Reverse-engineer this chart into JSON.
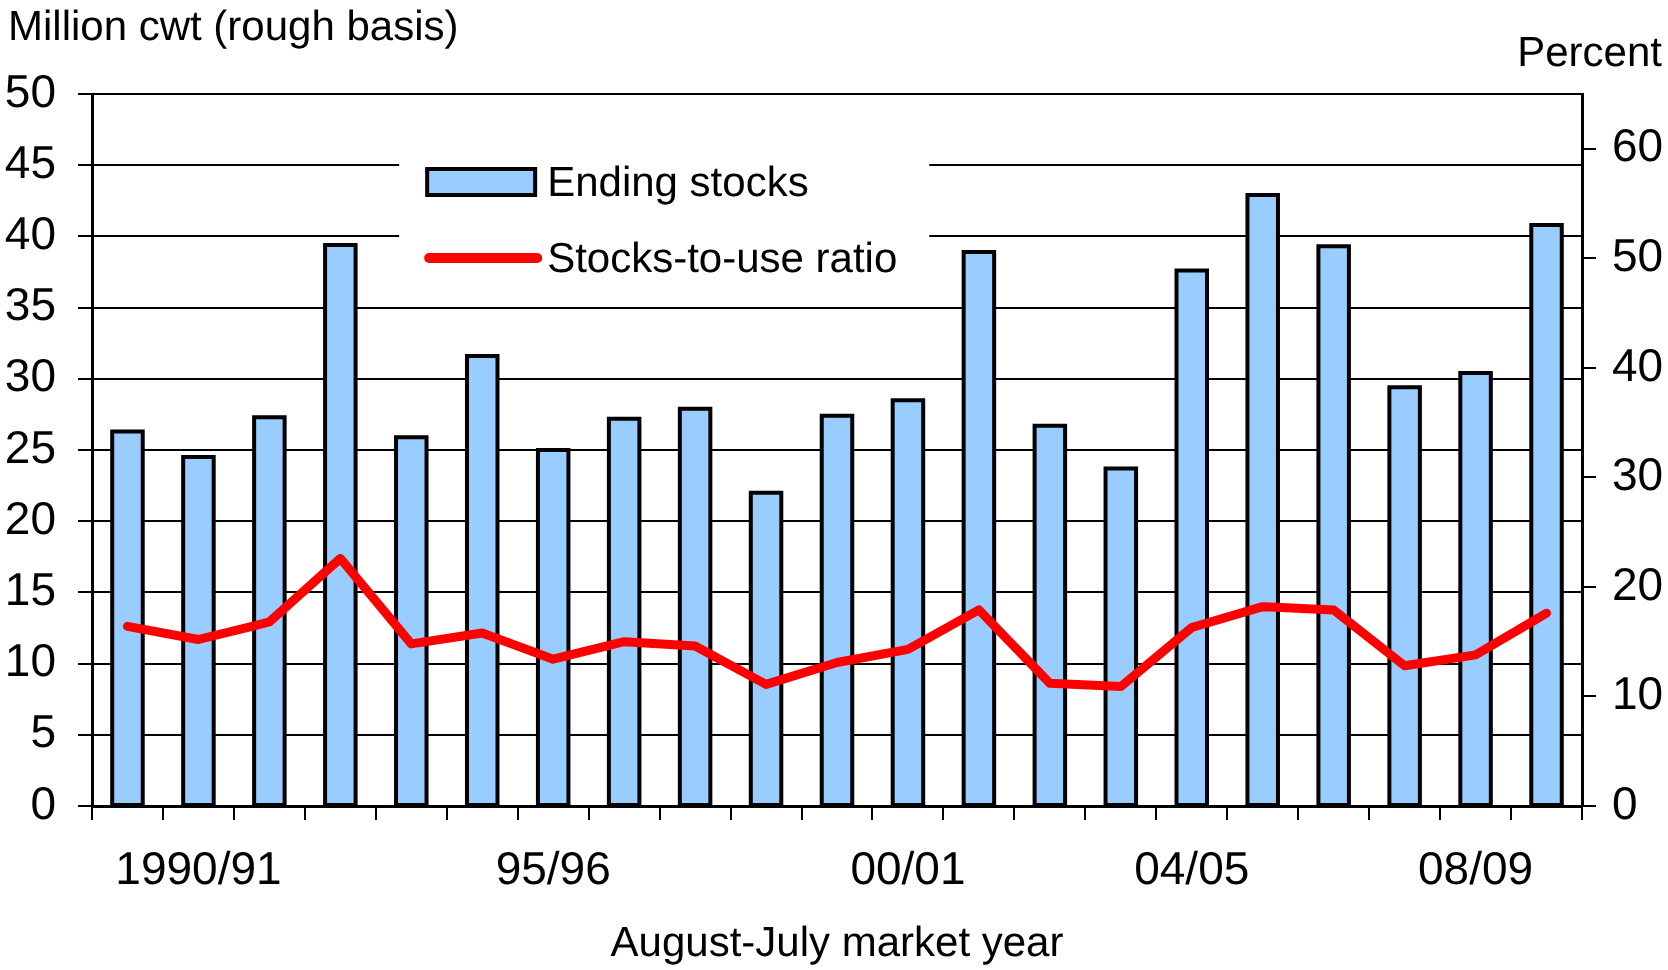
{
  "chart_data": {
    "type": "bar",
    "xlabel": "August-July market year",
    "ylabel": "Million cwt (rough basis)",
    "y2label": "Percent",
    "categories": [
      null,
      "1990/91",
      null,
      null,
      null,
      null,
      "95/96",
      null,
      null,
      null,
      null,
      "00/01",
      null,
      null,
      null,
      "04/05",
      null,
      null,
      null,
      "08/09",
      null
    ],
    "series": [
      {
        "name": "Ending stocks",
        "color": "#99ccff",
        "values": [
          26.3,
          24.5,
          27.3,
          39.4,
          25.9,
          31.6,
          25.0,
          27.2,
          27.9,
          22.0,
          27.4,
          28.5,
          38.9,
          26.7,
          23.7,
          37.6,
          42.9,
          39.3,
          29.4,
          30.4,
          40.8
        ]
      },
      {
        "name": "Stocks-to-use ratio",
        "type": "line",
        "axis": "y2",
        "color": "#ff0000",
        "marker": "none",
        "line_style": "solid",
        "values": [
          16.4,
          15.2,
          16.8,
          22.6,
          14.8,
          15.8,
          13.4,
          15.0,
          14.6,
          11.1,
          13.1,
          14.3,
          17.9,
          11.2,
          10.9,
          16.3,
          18.2,
          17.9,
          12.8,
          13.8,
          17.6
        ]
      }
    ],
    "ylim": [
      0,
      50
    ],
    "yticks": [
      0,
      5,
      10,
      15,
      20,
      25,
      30,
      35,
      40,
      45,
      50
    ],
    "y2lim": [
      0,
      65
    ],
    "y2ticks": [
      0,
      10,
      20,
      30,
      40,
      50,
      60
    ],
    "grid": "y",
    "legend": "top"
  }
}
